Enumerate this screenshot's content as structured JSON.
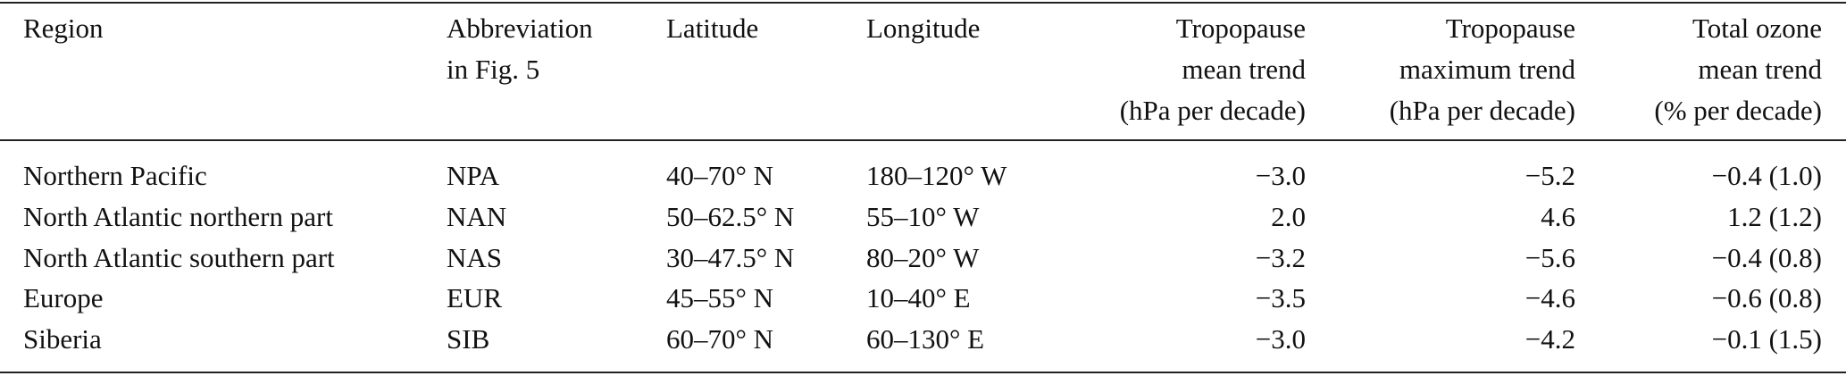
{
  "table": {
    "columns": [
      [
        "Region"
      ],
      [
        "Abbreviation",
        "in Fig. 5"
      ],
      [
        "Latitude"
      ],
      [
        "Longitude"
      ],
      [
        "Tropopause",
        "mean trend",
        "(hPa per decade)"
      ],
      [
        "Tropopause",
        "maximum trend",
        "(hPa per decade)"
      ],
      [
        "Total ozone",
        "mean trend",
        "(% per decade)"
      ]
    ],
    "rows": [
      [
        "Northern Pacific",
        "NPA",
        "40–70° N",
        "180–120° W",
        "−3.0",
        "−5.2",
        "−0.4 (1.0)"
      ],
      [
        "North Atlantic northern part",
        "NAN",
        "50–62.5° N",
        "55–10° W",
        "2.0",
        "4.6",
        "1.2 (1.2)"
      ],
      [
        "North Atlantic southern part",
        "NAS",
        "30–47.5° N",
        "80–20° W",
        "−3.2",
        "−5.6",
        "−0.4 (0.8)"
      ],
      [
        "Europe",
        "EUR",
        "45–55° N",
        "10–40° E",
        "−3.5",
        "−4.6",
        "−0.6 (0.8)"
      ],
      [
        "Siberia",
        "SIB",
        "60–70° N",
        "60–130° E",
        "−3.0",
        "−4.2",
        "−0.1 (1.5)"
      ]
    ]
  }
}
